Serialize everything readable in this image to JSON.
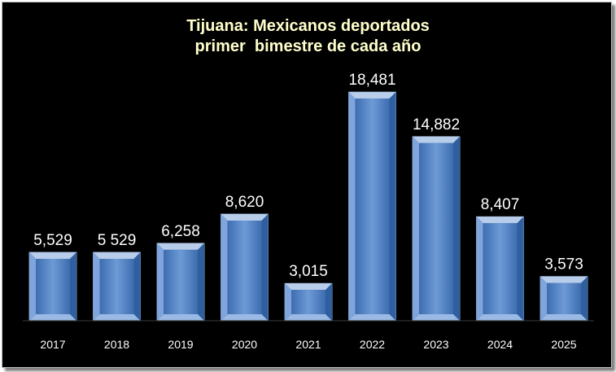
{
  "chart_data": {
    "type": "bar",
    "title_lines": [
      "Tijuana: Mexicanos deportados",
      "primer  bimestre de cada año"
    ],
    "categories": [
      "2017",
      "2018",
      "2019",
      "2020",
      "2021",
      "2022",
      "2023",
      "2024",
      "2025"
    ],
    "values": [
      5529,
      5529,
      6258,
      8620,
      3015,
      18481,
      14882,
      8407,
      3573
    ],
    "value_labels": [
      "5,529",
      "5 529",
      "6,258",
      "8,620",
      "3,015",
      "18,481",
      "14,882",
      "8,407",
      "3,573"
    ],
    "xlabel": "",
    "ylabel": "",
    "ylim": [
      0,
      20000
    ],
    "grid": false,
    "legend": "none",
    "colors": {
      "background": "#000000",
      "bar_light": "#b7cdea",
      "bar_mid": "#5f8fd0",
      "bar_dark": "#1f4e8c",
      "title": "#ffffcc",
      "labels": "#ffffff"
    }
  }
}
